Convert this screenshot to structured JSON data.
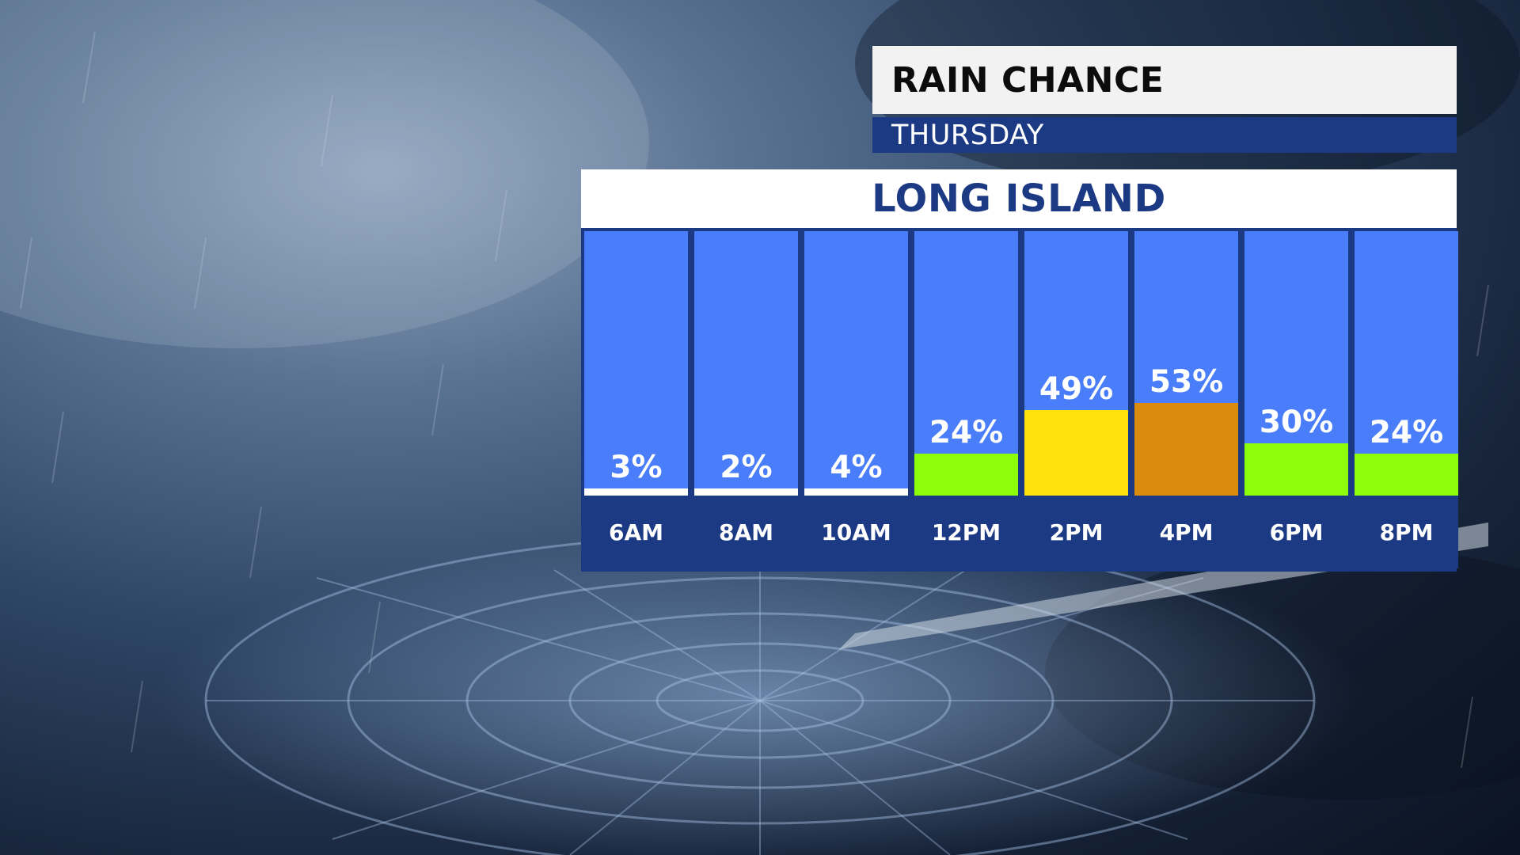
{
  "header": {
    "title": "RAIN CHANCE",
    "subtitle": "THURSDAY",
    "location": "LONG ISLAND"
  },
  "colors": {
    "panel_blue": "#1c3a84",
    "column_blue": "#4a7dfa",
    "low": "#ffffff",
    "moderate": "#8efd0a",
    "high": "#ffe20c",
    "higher": "#db8c0c"
  },
  "chart_data": {
    "type": "bar",
    "title": "RAIN CHANCE",
    "subtitle": "THURSDAY",
    "categories": [
      "6AM",
      "8AM",
      "10AM",
      "12PM",
      "2PM",
      "4PM",
      "6PM",
      "8PM"
    ],
    "values": [
      3,
      2,
      4,
      24,
      49,
      53,
      30,
      24
    ],
    "value_labels": [
      "3%",
      "2%",
      "4%",
      "24%",
      "49%",
      "53%",
      "30%",
      "24%"
    ],
    "bar_colors": [
      "#ffffff",
      "#ffffff",
      "#ffffff",
      "#8efd0a",
      "#ffe20c",
      "#db8c0c",
      "#8efd0a",
      "#8efd0a"
    ],
    "unit": "%",
    "ylim": [
      0,
      100
    ],
    "grid": false,
    "legend": "none"
  }
}
